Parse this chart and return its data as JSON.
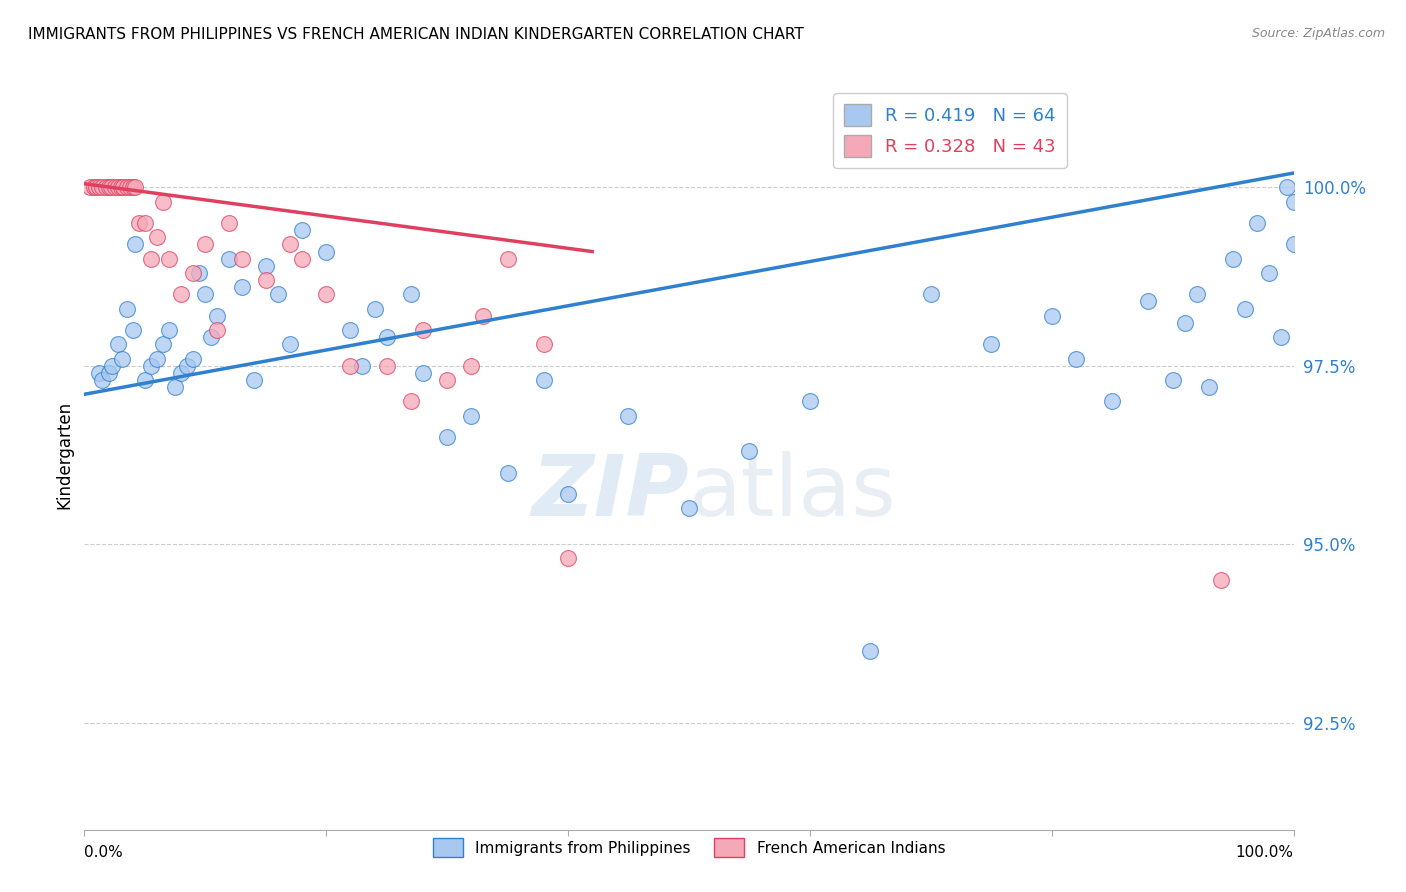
{
  "title": "IMMIGRANTS FROM PHILIPPINES VS FRENCH AMERICAN INDIAN KINDERGARTEN CORRELATION CHART",
  "source": "Source: ZipAtlas.com",
  "ylabel": "Kindergarten",
  "xlim": [
    0.0,
    100.0
  ],
  "ylim": [
    91.0,
    101.5
  ],
  "blue_R": 0.419,
  "blue_N": 64,
  "pink_R": 0.328,
  "pink_N": 43,
  "blue_color": "#A8C8F0",
  "pink_color": "#F5A8B8",
  "blue_line_color": "#3080D0",
  "pink_line_color": "#E04060",
  "legend_blue_label": "Immigrants from Philippines",
  "legend_pink_label": "French American Indians",
  "watermark_zip": "ZIP",
  "watermark_atlas": "atlas",
  "blue_scatter_x": [
    1.2,
    1.5,
    2.0,
    2.3,
    2.8,
    3.1,
    3.5,
    4.0,
    4.2,
    5.0,
    5.5,
    6.0,
    6.5,
    7.0,
    7.5,
    8.0,
    8.5,
    9.0,
    9.5,
    10.0,
    10.5,
    11.0,
    12.0,
    13.0,
    14.0,
    15.0,
    16.0,
    17.0,
    18.0,
    20.0,
    22.0,
    23.0,
    24.0,
    25.0,
    27.0,
    28.0,
    30.0,
    32.0,
    35.0,
    38.0,
    40.0,
    45.0,
    50.0,
    55.0,
    60.0,
    65.0,
    70.0,
    75.0,
    80.0,
    82.0,
    85.0,
    88.0,
    90.0,
    91.0,
    92.0,
    93.0,
    95.0,
    96.0,
    97.0,
    98.0,
    99.0,
    99.5,
    100.0,
    100.0
  ],
  "blue_scatter_y": [
    97.4,
    97.3,
    97.4,
    97.5,
    97.8,
    97.6,
    98.3,
    98.0,
    99.2,
    97.3,
    97.5,
    97.6,
    97.8,
    98.0,
    97.2,
    97.4,
    97.5,
    97.6,
    98.8,
    98.5,
    97.9,
    98.2,
    99.0,
    98.6,
    97.3,
    98.9,
    98.5,
    97.8,
    99.4,
    99.1,
    98.0,
    97.5,
    98.3,
    97.9,
    98.5,
    97.4,
    96.5,
    96.8,
    96.0,
    97.3,
    95.7,
    96.8,
    95.5,
    96.3,
    97.0,
    93.5,
    98.5,
    97.8,
    98.2,
    97.6,
    97.0,
    98.4,
    97.3,
    98.1,
    98.5,
    97.2,
    99.0,
    98.3,
    99.5,
    98.8,
    97.9,
    100.0,
    99.2,
    99.8
  ],
  "pink_scatter_x": [
    0.5,
    0.8,
    1.0,
    1.2,
    1.5,
    1.8,
    2.0,
    2.2,
    2.5,
    2.8,
    3.0,
    3.2,
    3.5,
    3.8,
    4.0,
    4.2,
    4.5,
    5.0,
    5.5,
    6.0,
    6.5,
    7.0,
    8.0,
    9.0,
    10.0,
    11.0,
    12.0,
    13.0,
    15.0,
    17.0,
    18.0,
    20.0,
    22.0,
    25.0,
    27.0,
    28.0,
    30.0,
    32.0,
    33.0,
    35.0,
    38.0,
    40.0,
    94.0
  ],
  "pink_scatter_y": [
    100.0,
    100.0,
    100.0,
    100.0,
    100.0,
    100.0,
    100.0,
    100.0,
    100.0,
    100.0,
    100.0,
    100.0,
    100.0,
    100.0,
    100.0,
    100.0,
    99.5,
    99.5,
    99.0,
    99.3,
    99.8,
    99.0,
    98.5,
    98.8,
    99.2,
    98.0,
    99.5,
    99.0,
    98.7,
    99.2,
    99.0,
    98.5,
    97.5,
    97.5,
    97.0,
    98.0,
    97.3,
    97.5,
    98.2,
    99.0,
    97.8,
    94.8,
    94.5
  ],
  "blue_trend_x": [
    0.0,
    100.0
  ],
  "blue_trend_y": [
    97.1,
    100.2
  ],
  "pink_trend_x": [
    0.0,
    42.0
  ],
  "pink_trend_y": [
    100.05,
    99.1
  ],
  "ytick_positions": [
    92.5,
    95.0,
    97.5,
    100.0
  ],
  "ytick_labels": [
    "92.5%",
    "95.0%",
    "97.5%",
    "100.0%"
  ]
}
